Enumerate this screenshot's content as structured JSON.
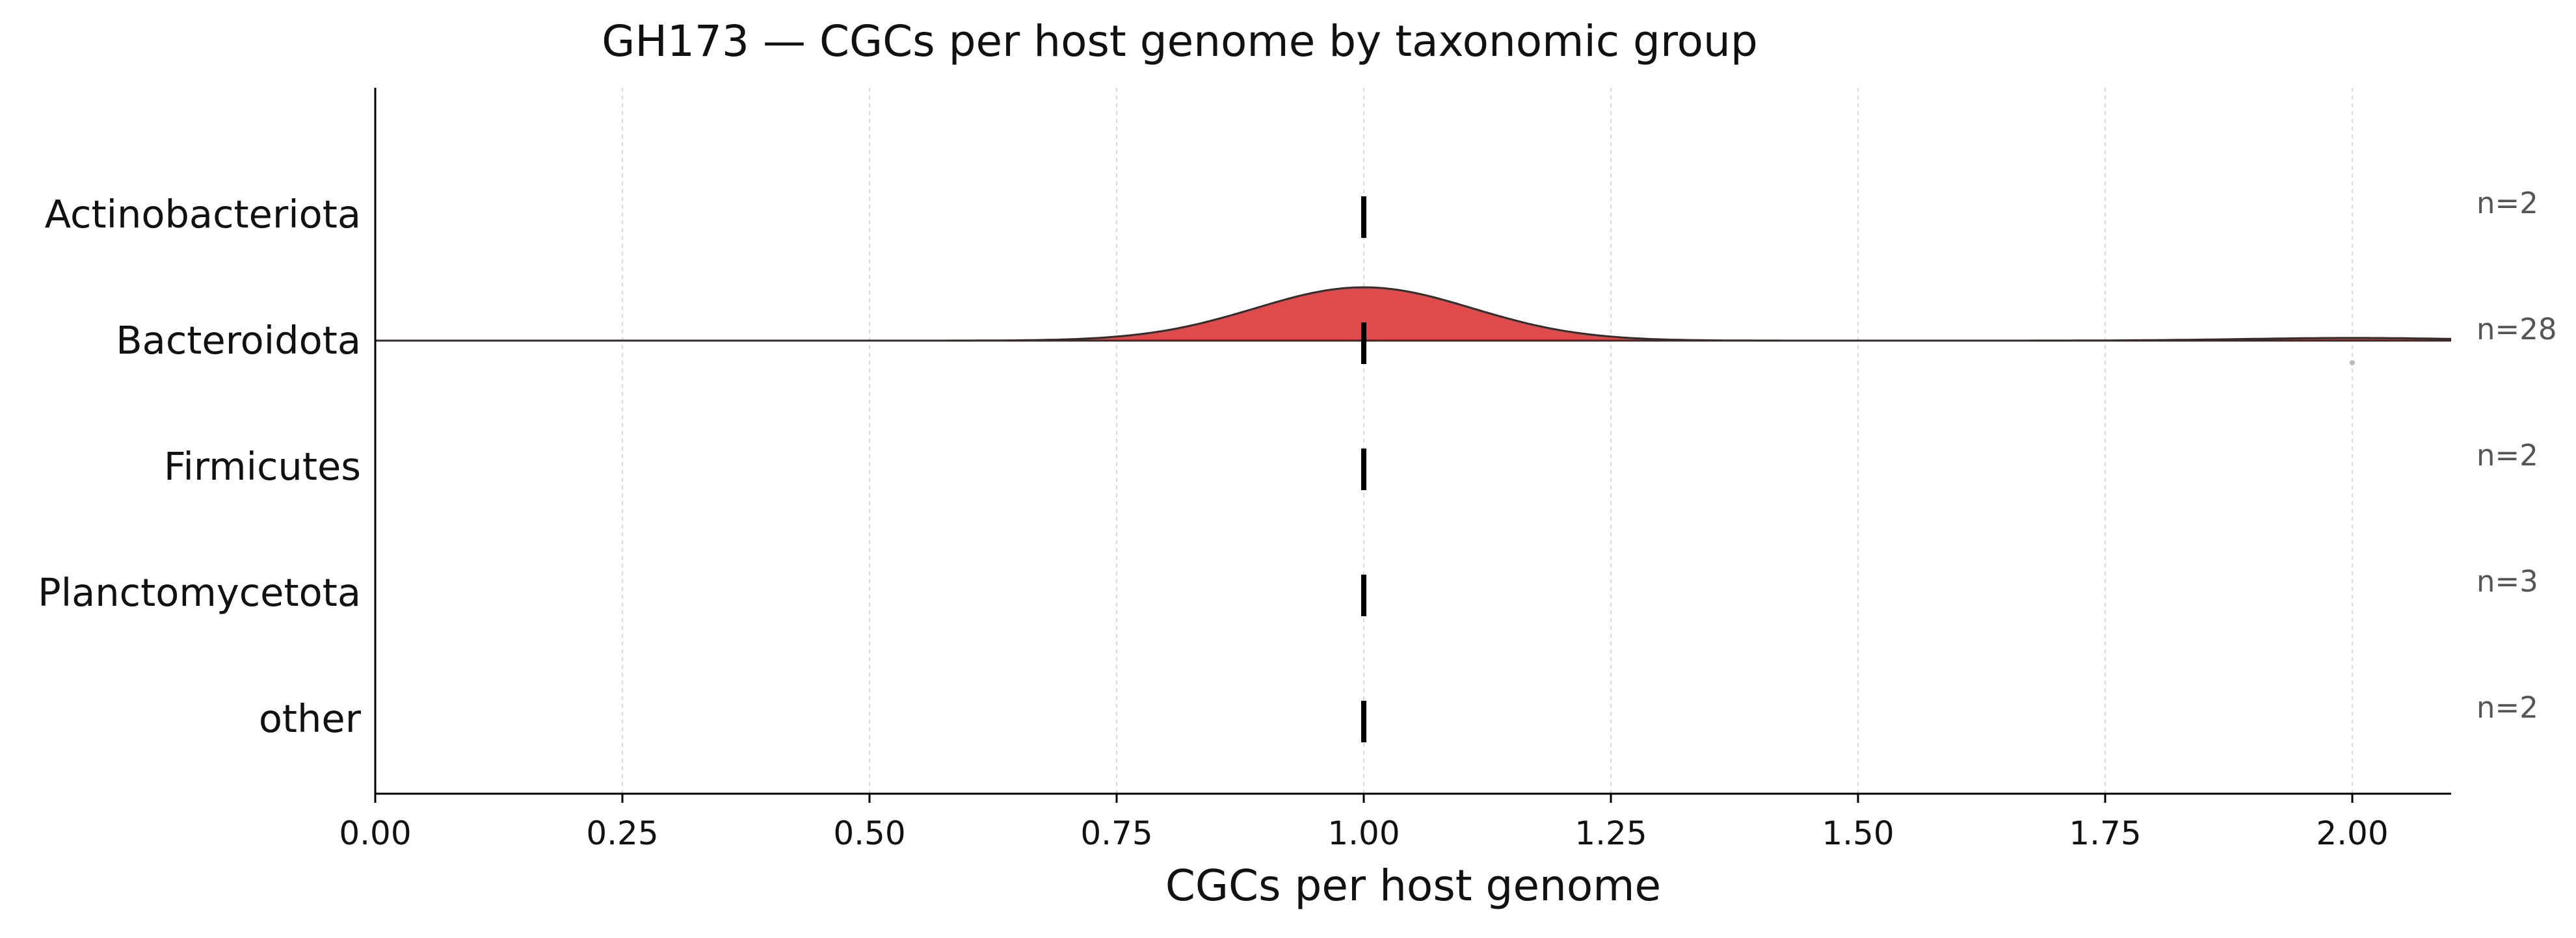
{
  "chart_data": {
    "type": "ridgeline",
    "title": "GH173 — CGCs per host genome by taxonomic group",
    "xlabel": "CGCs per host genome",
    "ylabel": "",
    "xlim": [
      0,
      2.1
    ],
    "x_ticks": [
      0.0,
      0.25,
      0.5,
      0.75,
      1.0,
      1.25,
      1.5,
      1.75,
      2.0
    ],
    "x_tick_labels": [
      "0.00",
      "0.25",
      "0.50",
      "0.75",
      "1.00",
      "1.25",
      "1.50",
      "1.75",
      "2.00"
    ],
    "grid": "vertical dashed",
    "categories": [
      "Actinobacteriota",
      "Bacteroidota",
      "Firmicutes",
      "Planctomycetota",
      "other"
    ],
    "series": [
      {
        "category": "Actinobacteriota",
        "n_label": "n=2",
        "median": 1.0,
        "has_density": false
      },
      {
        "category": "Bacteroidota",
        "n_label": "n=28",
        "median": 1.0,
        "has_density": true,
        "values_summary": {
          "mode": 1.0,
          "secondary_mode": 2.0
        },
        "outliers": [
          2.0
        ]
      },
      {
        "category": "Firmicutes",
        "n_label": "n=2",
        "median": 1.0,
        "has_density": false
      },
      {
        "category": "Planctomycetota",
        "n_label": "n=3",
        "median": 1.0,
        "has_density": false
      },
      {
        "category": "other",
        "n_label": "n=2",
        "median": 1.0,
        "has_density": false
      }
    ],
    "colors": {
      "density_fill": "#e04a4a",
      "density_stroke": "#3a2a2a",
      "median_mark": "#000000",
      "axis": "#000000",
      "grid": "#d8d8d8",
      "n_label": "#555555",
      "outlier": "#bbbbbb"
    }
  }
}
